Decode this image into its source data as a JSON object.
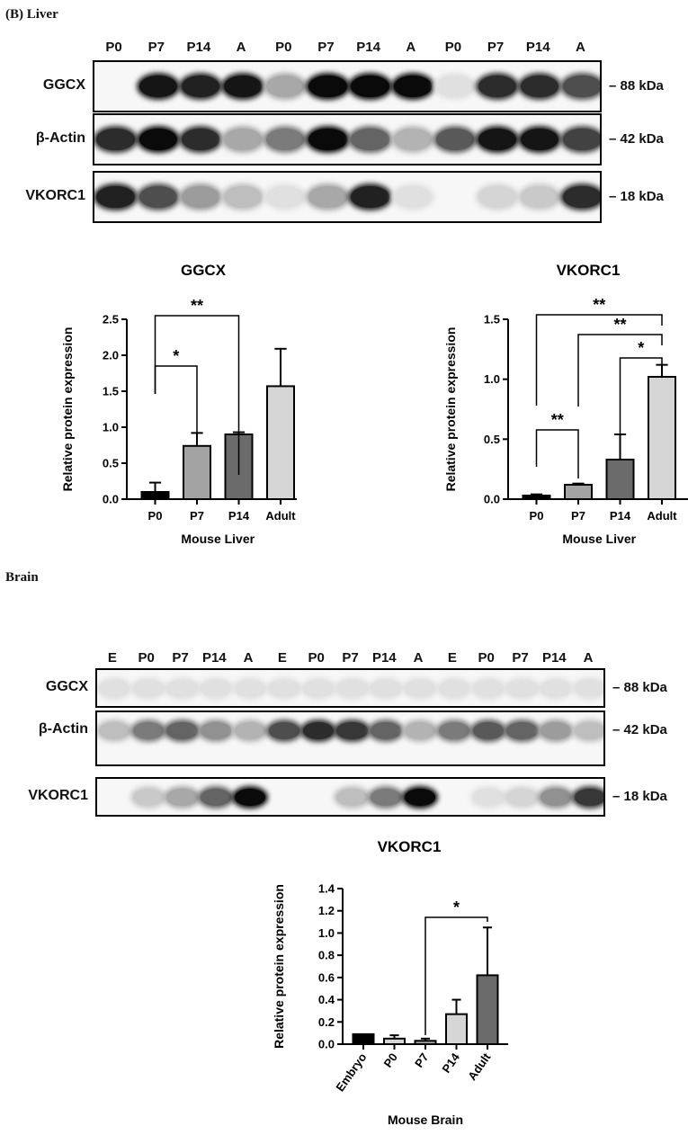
{
  "liver_section": {
    "label_bold": "(B)",
    "label_rest": " Liver"
  },
  "liver_blot": {
    "lanes": [
      "P0",
      "P7",
      "P14",
      "A",
      "P0",
      "P7",
      "P14",
      "A",
      "P0",
      "P7",
      "P14",
      "A"
    ],
    "rows": [
      {
        "name": "GGCX",
        "kda": "– 88 kDa",
        "intensity": [
          0.0,
          0.95,
          0.9,
          0.95,
          0.3,
          1.0,
          1.0,
          1.0,
          0.05,
          0.85,
          0.85,
          0.7
        ]
      },
      {
        "name": "β-Actin",
        "kda": "– 42 kDa",
        "intensity": [
          0.85,
          1.0,
          0.85,
          0.3,
          0.5,
          1.0,
          0.6,
          0.25,
          0.65,
          0.95,
          0.95,
          0.75
        ]
      },
      {
        "name": "VKORC1",
        "kda": "– 18 kDa",
        "intensity": [
          0.9,
          0.7,
          0.35,
          0.2,
          0.05,
          0.3,
          0.9,
          0.05,
          0.0,
          0.1,
          0.15,
          0.85
        ]
      }
    ]
  },
  "liver_charts": {
    "ylabel": "Relative protein expression",
    "xlabel": "Mouse Liver"
  },
  "brain_section": {
    "label": "Brain"
  },
  "brain_blot": {
    "lanes": [
      "E",
      "P0",
      "P7",
      "P14",
      "A",
      "E",
      "P0",
      "P7",
      "P14",
      "A",
      "E",
      "P0",
      "P7",
      "P14",
      "A"
    ],
    "rows": [
      {
        "name": "GGCX",
        "kda": "– 88 kDa",
        "intensity": [
          0.05,
          0.05,
          0.05,
          0.05,
          0.05,
          0.05,
          0.05,
          0.05,
          0.05,
          0.05,
          0.05,
          0.05,
          0.05,
          0.05,
          0.05
        ]
      },
      {
        "name": "β-Actin",
        "kda": "– 42 kDa",
        "intensity": [
          0.2,
          0.5,
          0.6,
          0.4,
          0.25,
          0.7,
          0.85,
          0.8,
          0.6,
          0.25,
          0.5,
          0.65,
          0.6,
          0.35,
          0.2
        ]
      },
      {
        "name": "VKORC1",
        "kda": "– 18 kDa",
        "intensity": [
          0.0,
          0.15,
          0.3,
          0.6,
          1.0,
          0.0,
          0.0,
          0.2,
          0.5,
          1.0,
          0.0,
          0.05,
          0.1,
          0.4,
          0.8
        ]
      }
    ]
  },
  "chart_data": [
    {
      "type": "bar",
      "title": "GGCX",
      "categories": [
        "P0",
        "P7",
        "P14",
        "Adult"
      ],
      "values": [
        0.1,
        0.74,
        0.9,
        1.57
      ],
      "errors": [
        0.13,
        0.18,
        0.03,
        0.52
      ],
      "colors": [
        "#000000",
        "#a3a3a3",
        "#6b6b6b",
        "#d6d6d6"
      ],
      "ylabel": "Relative protein expression",
      "xlabel": "Mouse Liver",
      "ylim": [
        0,
        2.5
      ],
      "yticks": [
        "0.0",
        "0.5",
        "1.0",
        "1.5",
        "2.0",
        "2.5"
      ],
      "significance": [
        {
          "from": 0,
          "to": 1,
          "label": "*"
        },
        {
          "from": 0,
          "to": 2,
          "label": "**"
        }
      ]
    },
    {
      "type": "bar",
      "title": "VKORC1",
      "categories": [
        "P0",
        "P7",
        "P14",
        "Adult"
      ],
      "values": [
        0.03,
        0.12,
        0.33,
        1.02
      ],
      "errors": [
        0.01,
        0.01,
        0.21,
        0.1
      ],
      "colors": [
        "#000000",
        "#a3a3a3",
        "#6b6b6b",
        "#d6d6d6"
      ],
      "ylabel": "Relative protein expression",
      "xlabel": "Mouse Liver",
      "ylim": [
        0,
        1.5
      ],
      "yticks": [
        "0.0",
        "0.5",
        "1.0",
        "1.5"
      ],
      "significance": [
        {
          "from": 0,
          "to": 1,
          "label": "**"
        },
        {
          "from": 2,
          "to": 3,
          "label": "*"
        },
        {
          "from": 1,
          "to": 3,
          "label": "**"
        },
        {
          "from": 0,
          "to": 3,
          "label": "**"
        }
      ]
    },
    {
      "type": "bar",
      "title": "VKORC1",
      "categories": [
        "Embryo",
        "P0",
        "P7",
        "P14",
        "Adult"
      ],
      "values": [
        0.09,
        0.05,
        0.03,
        0.27,
        0.62
      ],
      "errors": [
        0.0,
        0.03,
        0.02,
        0.13,
        0.43
      ],
      "colors": [
        "#000000",
        "#d6d6d6",
        "#a3a3a3",
        "#d6d6d6",
        "#6b6b6b"
      ],
      "ylabel": "Relative protein expression",
      "xlabel": "Mouse Brain",
      "ylim": [
        0,
        1.4
      ],
      "yticks": [
        "0.0",
        "0.2",
        "0.4",
        "0.6",
        "0.8",
        "1.0",
        "1.2",
        "1.4"
      ],
      "significance": [
        {
          "from": 2,
          "to": 4,
          "label": "*"
        }
      ]
    }
  ]
}
